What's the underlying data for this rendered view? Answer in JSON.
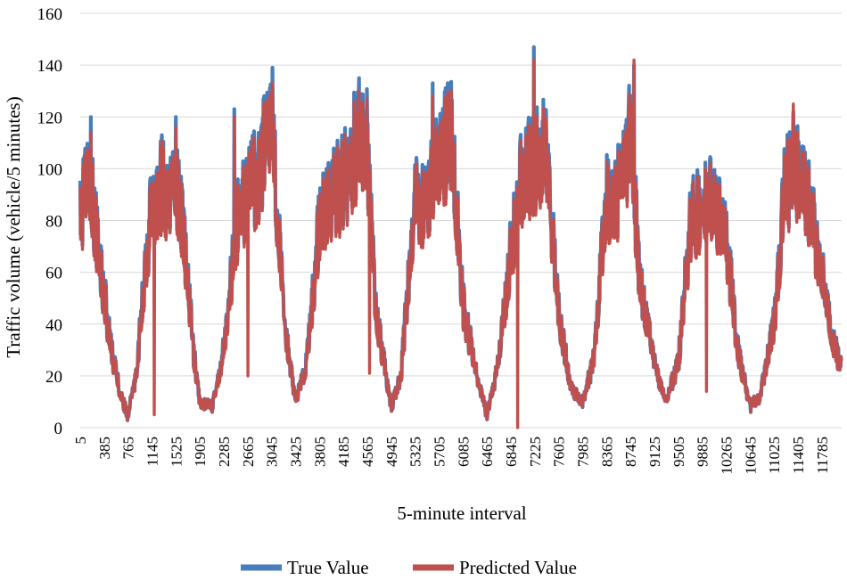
{
  "chart_data": {
    "type": "line",
    "title": "",
    "xlabel": "5-minute interval",
    "ylabel": "Traffic volume (vehicle/5 minutes)",
    "ylim": [
      0,
      160
    ],
    "y_ticks": [
      0,
      20,
      40,
      60,
      80,
      100,
      120,
      140,
      160
    ],
    "x_range": [
      5,
      12100
    ],
    "x_ticks": [
      "5",
      "385",
      "765",
      "1145",
      "1525",
      "1905",
      "2285",
      "2665",
      "3045",
      "3425",
      "3805",
      "4185",
      "4565",
      "4945",
      "5325",
      "5705",
      "6085",
      "6465",
      "6845",
      "7225",
      "7605",
      "7985",
      "8365",
      "8745",
      "9125",
      "9505",
      "9885",
      "10265",
      "10645",
      "11025",
      "11405",
      "11785"
    ],
    "grid": "horizontal",
    "legend_position": "bottom",
    "series": [
      {
        "name": "True Value",
        "color": "#4a7ebb",
        "x": [
          5,
          150,
          300,
          500,
          650,
          760,
          880,
          1000,
          1145,
          1300,
          1400,
          1525,
          1650,
          1800,
          1905,
          2100,
          2285,
          2500,
          2665,
          2850,
          3045,
          3150,
          3250,
          3425,
          3600,
          3805,
          4000,
          4185,
          4350,
          4565,
          4700,
          4945,
          5100,
          5325,
          5500,
          5705,
          5900,
          6085,
          6300,
          6465,
          6650,
          6845,
          7000,
          7225,
          7400,
          7605,
          7800,
          7985,
          8150,
          8365,
          8550,
          8745,
          8900,
          9125,
          9300,
          9505,
          9700,
          9885,
          10050,
          10265,
          10450,
          10645,
          10800,
          11025,
          11200,
          11405,
          11600,
          11785,
          11950,
          12100
        ],
        "values": [
          80,
          100,
          68,
          30,
          12,
          5,
          18,
          50,
          88,
          95,
          90,
          95,
          75,
          30,
          10,
          8,
          30,
          80,
          92,
          100,
          118,
          80,
          40,
          10,
          25,
          80,
          90,
          95,
          108,
          110,
          45,
          8,
          20,
          90,
          85,
          105,
          115,
          48,
          20,
          5,
          25,
          70,
          95,
          105,
          108,
          45,
          15,
          10,
          25,
          88,
          92,
          115,
          55,
          25,
          10,
          25,
          80,
          85,
          90,
          75,
          30,
          8,
          12,
          40,
          95,
          100,
          85,
          60,
          35,
          22
        ],
        "peaks": [
          [
            170,
            120
          ],
          [
            1525,
            120
          ],
          [
            2450,
            123
          ],
          [
            3060,
            139
          ],
          [
            4430,
            135
          ],
          [
            5600,
            133
          ],
          [
            7210,
            147
          ],
          [
            8800,
            140
          ],
          [
            11330,
            122
          ]
        ]
      },
      {
        "name": "Predicted Value",
        "color": "#c0504d",
        "x": [
          5,
          150,
          300,
          500,
          650,
          760,
          880,
          1000,
          1145,
          1300,
          1400,
          1525,
          1650,
          1800,
          1905,
          2100,
          2285,
          2500,
          2665,
          2850,
          3045,
          3150,
          3250,
          3425,
          3600,
          3805,
          4000,
          4185,
          4350,
          4565,
          4700,
          4945,
          5100,
          5325,
          5500,
          5705,
          5900,
          6085,
          6300,
          6465,
          6650,
          6845,
          7000,
          7225,
          7400,
          7605,
          7800,
          7985,
          8150,
          8365,
          8550,
          8745,
          8900,
          9125,
          9300,
          9505,
          9700,
          9885,
          10050,
          10265,
          10450,
          10645,
          10800,
          11025,
          11200,
          11405,
          11600,
          11785,
          11950,
          12100
        ],
        "values": [
          78,
          98,
          66,
          29,
          12,
          5,
          18,
          48,
          86,
          93,
          88,
          93,
          73,
          29,
          10,
          8,
          29,
          78,
          90,
          98,
          115,
          78,
          39,
          10,
          24,
          78,
          88,
          93,
          105,
          107,
          44,
          8,
          20,
          88,
          83,
          102,
          112,
          47,
          20,
          5,
          25,
          68,
          93,
          102,
          105,
          44,
          15,
          10,
          25,
          86,
          90,
          112,
          54,
          25,
          10,
          25,
          78,
          83,
          88,
          73,
          29,
          8,
          12,
          39,
          93,
          98,
          83,
          59,
          34,
          22
        ],
        "peaks": [
          [
            170,
            114
          ],
          [
            1525,
            116
          ],
          [
            2450,
            120
          ],
          [
            3060,
            133
          ],
          [
            4430,
            130
          ],
          [
            5600,
            128
          ],
          [
            7210,
            142
          ],
          [
            8800,
            142
          ],
          [
            11330,
            125
          ]
        ],
        "dips": [
          [
            1180,
            5
          ],
          [
            6950,
            0
          ],
          [
            4600,
            21
          ],
          [
            9950,
            14
          ],
          [
            2670,
            20
          ]
        ]
      }
    ]
  }
}
